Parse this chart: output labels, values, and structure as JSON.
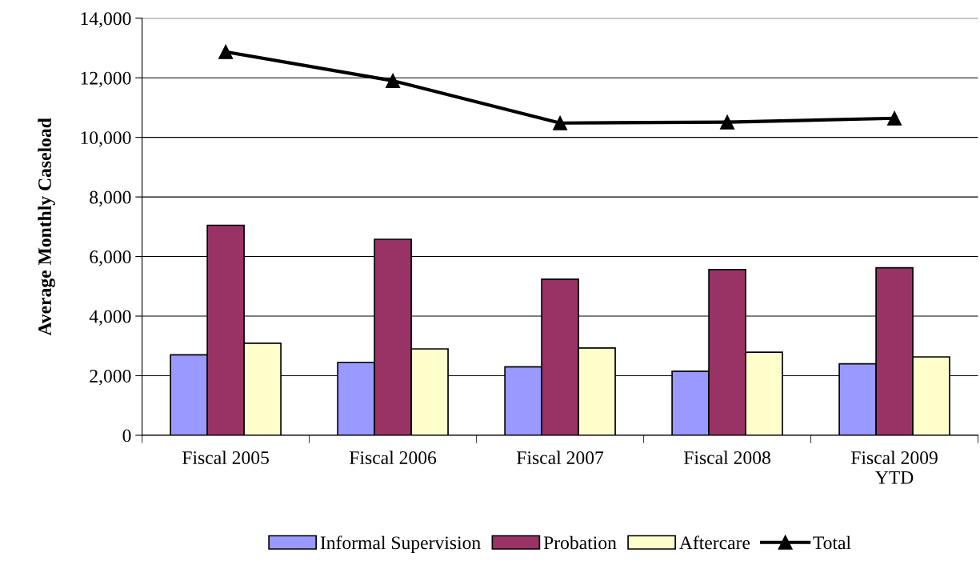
{
  "chart_data": {
    "type": "bar",
    "ylabel": "Average Monthly Caseload",
    "categories": [
      "Fiscal 2005",
      "Fiscal 2006",
      "Fiscal 2007",
      "Fiscal 2008",
      "Fiscal 2009\nYTD"
    ],
    "series": [
      {
        "name": "Informal Supervision",
        "color": "#9999ff",
        "values": [
          2700,
          2450,
          2300,
          2150,
          2400
        ]
      },
      {
        "name": "Probation",
        "color": "#993366",
        "values": [
          7050,
          6580,
          5240,
          5560,
          5620
        ]
      },
      {
        "name": "Aftercare",
        "color": "#ffffcc",
        "values": [
          3090,
          2900,
          2930,
          2790,
          2630
        ]
      },
      {
        "name": "Total",
        "type": "line",
        "color": "#000000",
        "marker": "triangle",
        "values": [
          12870,
          11900,
          10480,
          10510,
          10640
        ]
      }
    ],
    "ylim": [
      0,
      14000
    ],
    "yticks": [
      {
        "value": 0,
        "label": "0"
      },
      {
        "value": 2000,
        "label": "2,000"
      },
      {
        "value": 4000,
        "label": "4,000"
      },
      {
        "value": 6000,
        "label": "6,000"
      },
      {
        "value": 8000,
        "label": "8,000"
      },
      {
        "value": 10000,
        "label": "10,000"
      },
      {
        "value": 12000,
        "label": "12,000"
      },
      {
        "value": 14000,
        "label": "14,000"
      }
    ],
    "grid": "y",
    "legend": "bottom"
  }
}
